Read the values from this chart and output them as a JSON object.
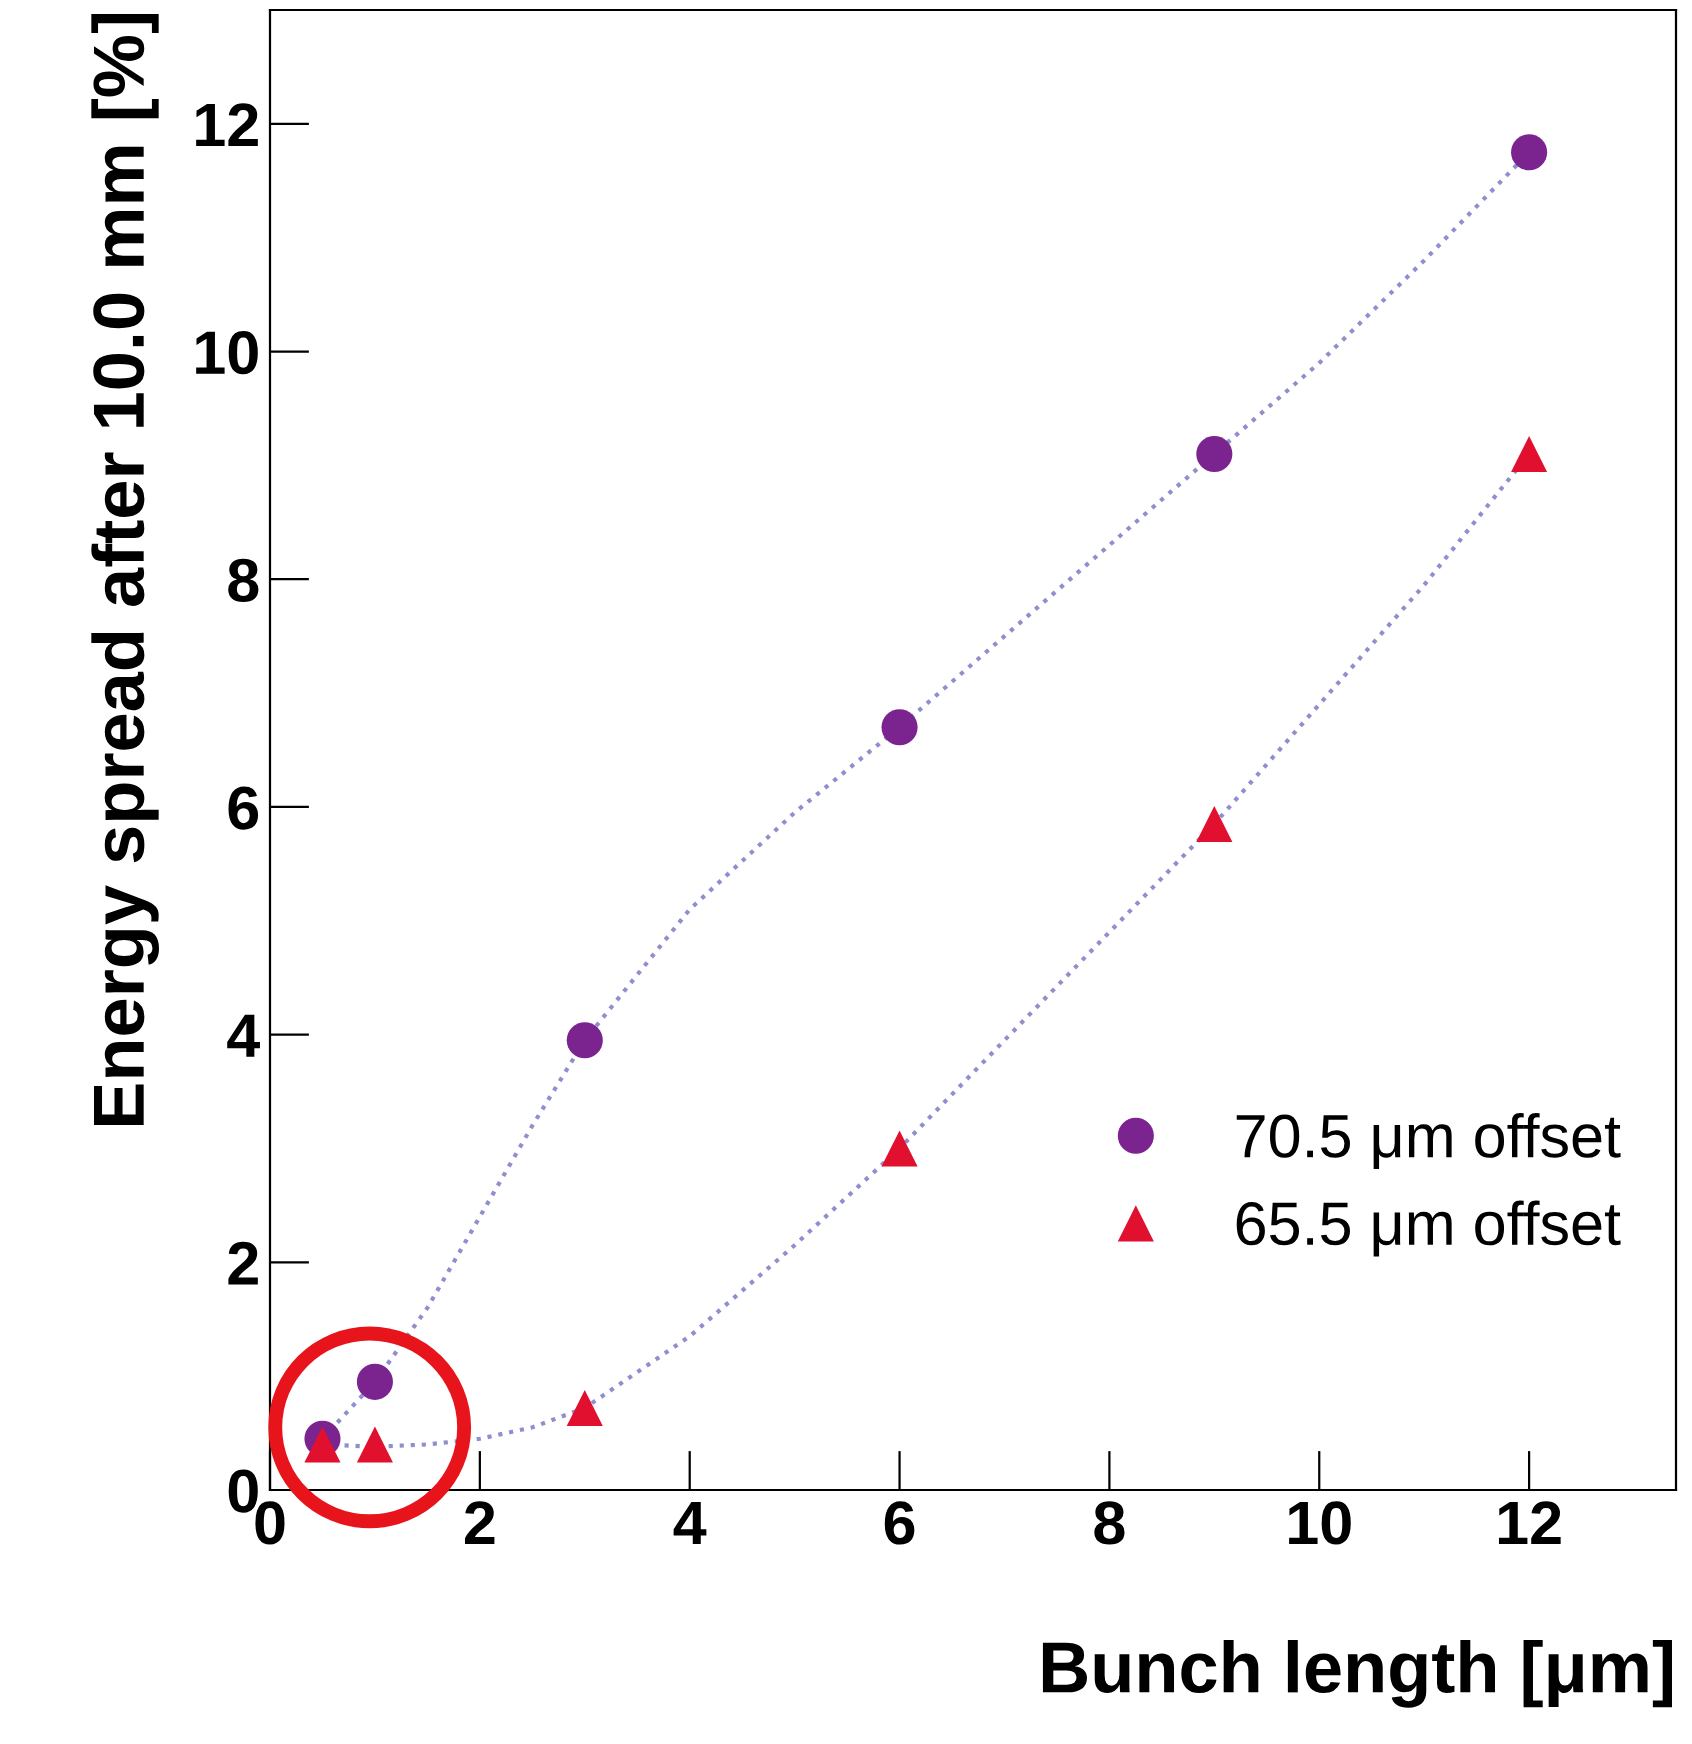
{
  "chart_data": {
    "type": "scatter",
    "xlabel": "Bunch length [μm]",
    "ylabel": "Energy spread after 10.0 mm [%]",
    "xlim": [
      0,
      13.4
    ],
    "ylim": [
      0,
      13
    ],
    "xticks": [
      0,
      2,
      4,
      6,
      8,
      10,
      12
    ],
    "yticks": [
      0,
      2,
      4,
      6,
      8,
      10,
      12
    ],
    "grid": false,
    "legend": "bottom right",
    "series": [
      {
        "type": "line",
        "color": "#8f8fd0",
        "line_style": "dotted",
        "marker": "none",
        "x": [
          0.5,
          1,
          1.5,
          2,
          2.5,
          3,
          4,
          5,
          6,
          7,
          8,
          9,
          10,
          11,
          12
        ],
        "values": [
          0.45,
          0.95,
          1.6,
          2.4,
          3.2,
          3.95,
          5.1,
          5.95,
          6.7,
          7.5,
          8.3,
          9.1,
          9.9,
          10.8,
          11.75
        ]
      },
      {
        "type": "line",
        "color": "#8f8fd0",
        "line_style": "dotted",
        "marker": "none",
        "x": [
          0.5,
          1,
          1.5,
          2,
          2.5,
          3,
          4,
          5,
          6,
          7,
          8,
          9,
          10,
          11,
          12
        ],
        "values": [
          0.4,
          0.38,
          0.4,
          0.45,
          0.55,
          0.72,
          1.35,
          2.15,
          3.0,
          3.95,
          4.9,
          5.85,
          6.9,
          7.95,
          9.1
        ]
      },
      {
        "name": "70.5 μm offset",
        "color": "#7b2490",
        "marker": "circle",
        "x": [
          0.5,
          1,
          3,
          6,
          9,
          12
        ],
        "values": [
          0.45,
          0.95,
          3.95,
          6.7,
          9.1,
          11.75
        ]
      },
      {
        "name": "65.5 μm offset",
        "color": "#e0102e",
        "marker": "triangle",
        "x": [
          0.5,
          1,
          3,
          6,
          9,
          12
        ],
        "values": [
          0.4,
          0.4,
          0.72,
          3.0,
          5.85,
          9.1
        ]
      }
    ]
  }
}
